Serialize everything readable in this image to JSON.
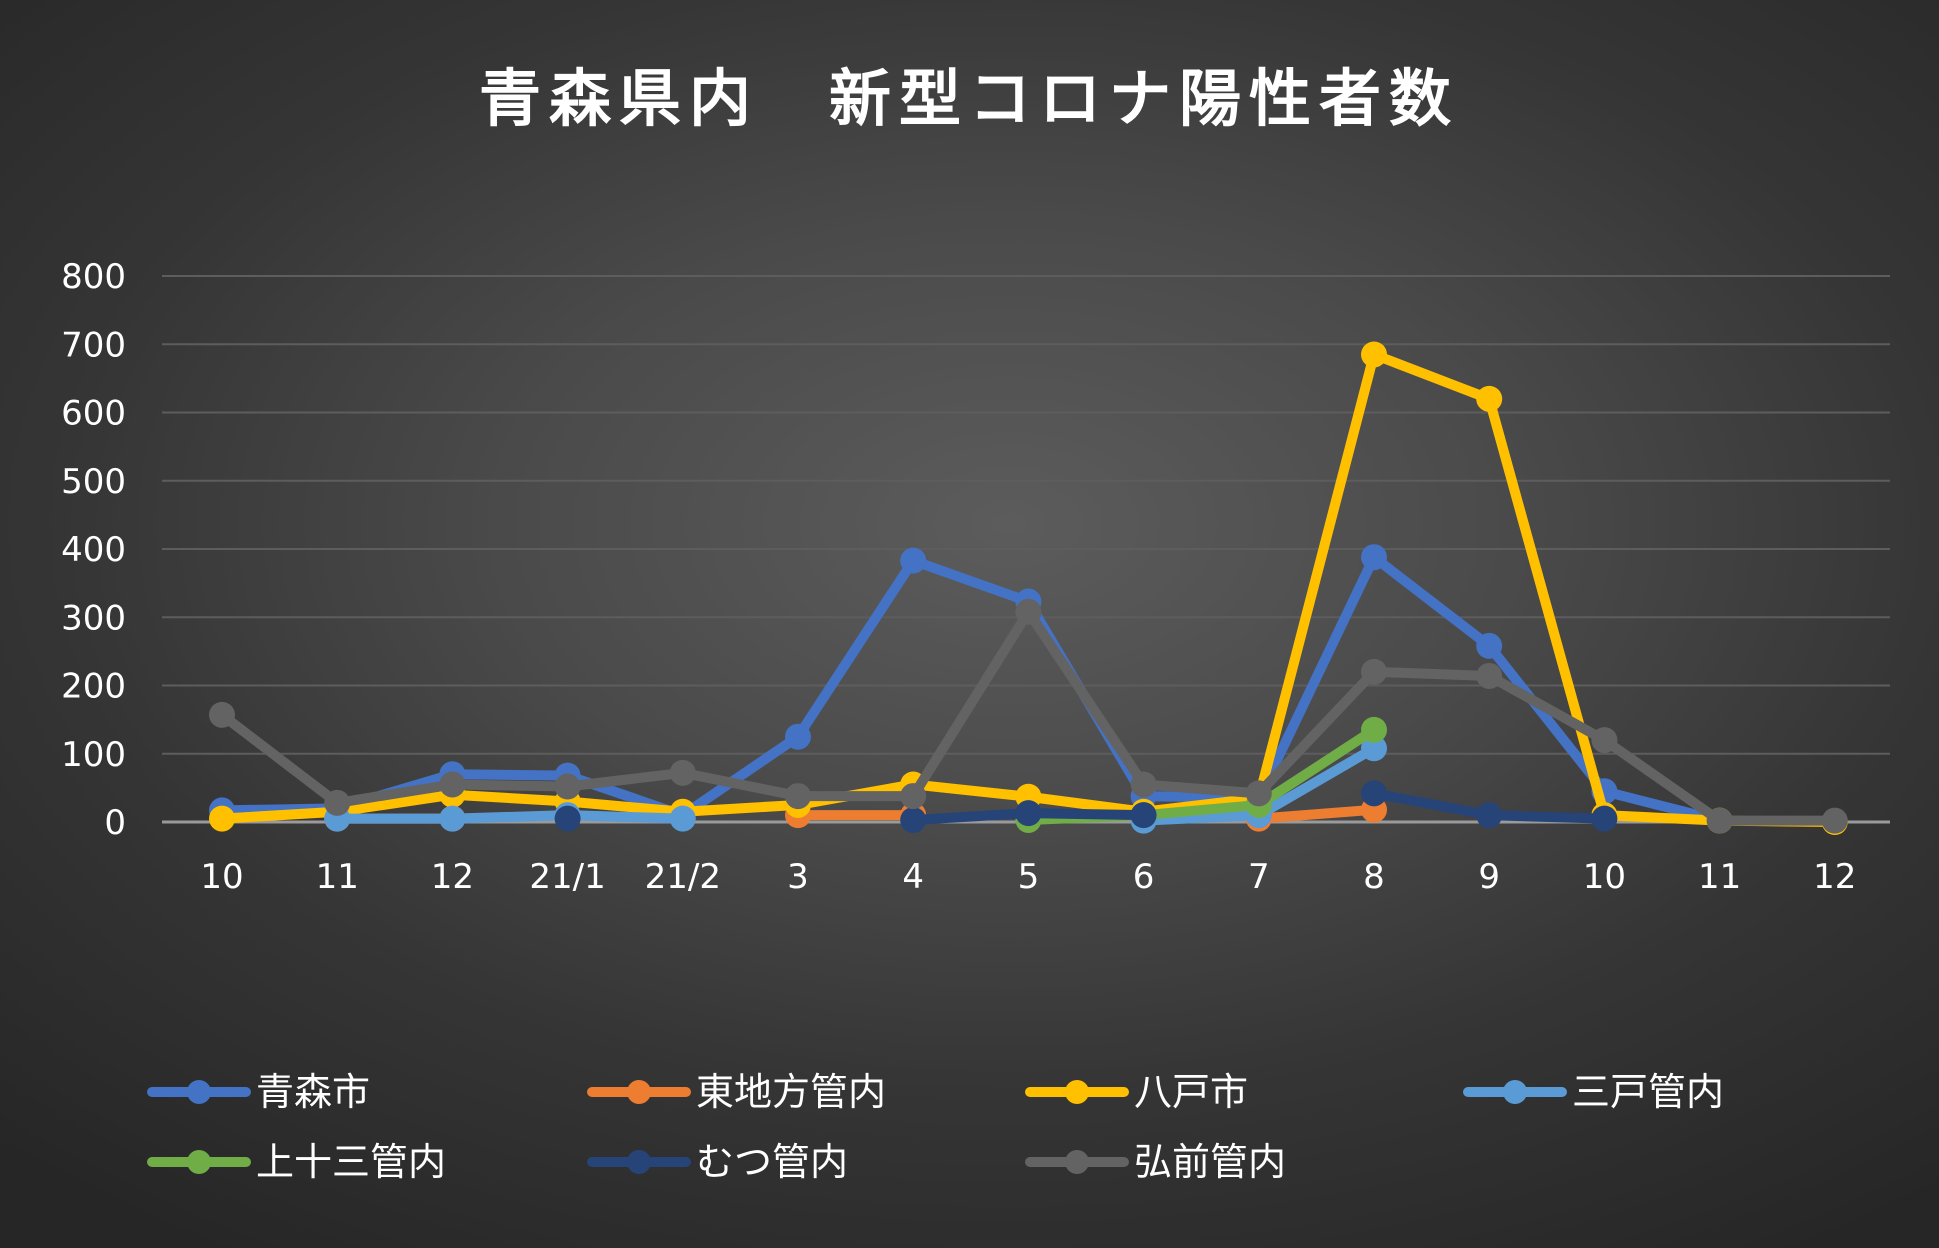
{
  "chart_data": {
    "type": "line",
    "title": "青森県内　新型コロナ陽性者数",
    "categories": [
      "10",
      "11",
      "12",
      "21/1",
      "21/2",
      "3",
      "4",
      "5",
      "6",
      "7",
      "8",
      "9",
      "10",
      "11",
      "12"
    ],
    "ylim": [
      0,
      800
    ],
    "yticks": [
      0,
      100,
      200,
      300,
      400,
      500,
      600,
      700,
      800
    ],
    "grid": true,
    "legend_position": "bottom",
    "series": [
      {
        "name": "青森市",
        "color": "#4472c4",
        "values": [
          17,
          20,
          70,
          68,
          10,
          125,
          383,
          323,
          38,
          35,
          388,
          258,
          45,
          2,
          null
        ]
      },
      {
        "name": "東地方管内",
        "color": "#ed7d31",
        "values": [
          null,
          5,
          5,
          null,
          null,
          10,
          10,
          null,
          null,
          5,
          18,
          null,
          null,
          null,
          null
        ]
      },
      {
        "name": "八戸市",
        "color": "#ffc000",
        "values": [
          5,
          15,
          40,
          30,
          15,
          25,
          55,
          37,
          15,
          35,
          685,
          620,
          10,
          2,
          0
        ]
      },
      {
        "name": "三戸管内",
        "color": "#5b9bd5",
        "values": [
          null,
          5,
          5,
          10,
          5,
          null,
          null,
          null,
          2,
          10,
          108,
          null,
          null,
          null,
          null
        ]
      },
      {
        "name": "上十三管内",
        "color": "#70ad47",
        "values": [
          null,
          null,
          null,
          null,
          null,
          null,
          null,
          3,
          10,
          25,
          135,
          null,
          null,
          null,
          null
        ]
      },
      {
        "name": "むつ管内",
        "color": "#264478",
        "values": [
          null,
          null,
          null,
          5,
          null,
          null,
          3,
          13,
          10,
          null,
          42,
          10,
          5,
          null,
          null
        ]
      },
      {
        "name": "弘前管内",
        "color": "#636363",
        "values": [
          157,
          28,
          55,
          52,
          72,
          38,
          38,
          308,
          55,
          42,
          220,
          214,
          120,
          2,
          2
        ]
      }
    ]
  }
}
